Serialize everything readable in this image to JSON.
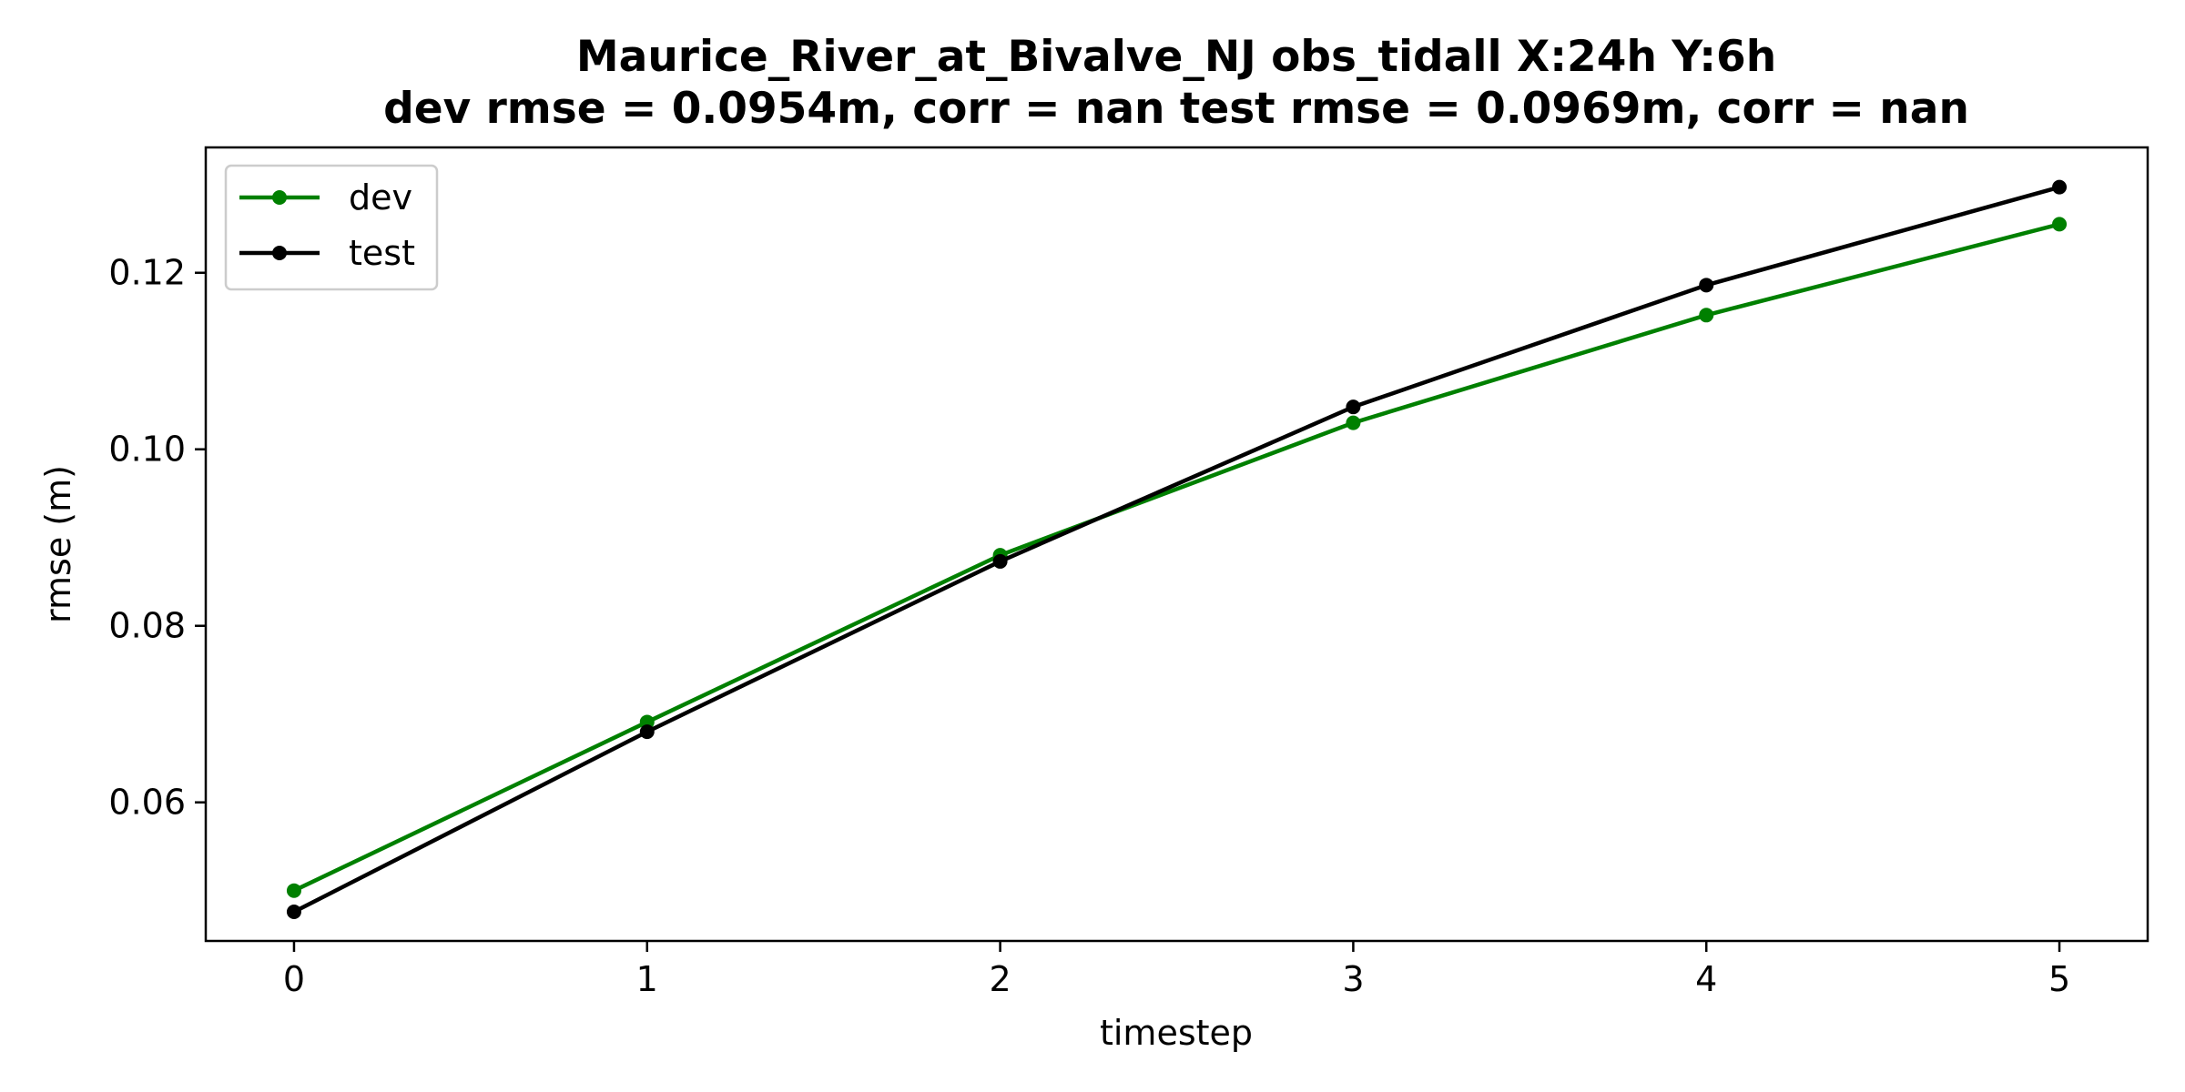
{
  "chart_data": {
    "type": "line",
    "title": "Maurice_River_at_Bivalve_NJ   obs_tidall   X:24h   Y:6h",
    "subtitle": "dev rmse = 0.0954m, corr = nan   test rmse = 0.0969m, corr = nan",
    "xlabel": "timestep",
    "ylabel": "rmse (m)",
    "x": [
      0,
      1,
      2,
      3,
      4,
      5
    ],
    "xticks": [
      "0",
      "1",
      "2",
      "3",
      "4",
      "5"
    ],
    "yticks": [
      0.06,
      0.08,
      0.1,
      0.12
    ],
    "ytick_labels": [
      "0.06",
      "0.08",
      "0.10",
      "0.12"
    ],
    "xlim": [
      -0.25,
      5.25
    ],
    "ylim": [
      0.0443,
      0.1342
    ],
    "grid": false,
    "legend_position": "upper left",
    "series": [
      {
        "name": "dev",
        "color": "#008000",
        "values": [
          0.05,
          0.0691,
          0.088,
          0.103,
          0.1152,
          0.1255
        ]
      },
      {
        "name": "test",
        "color": "#000000",
        "values": [
          0.0476,
          0.068,
          0.0873,
          0.1048,
          0.1186,
          0.1297
        ]
      }
    ]
  }
}
